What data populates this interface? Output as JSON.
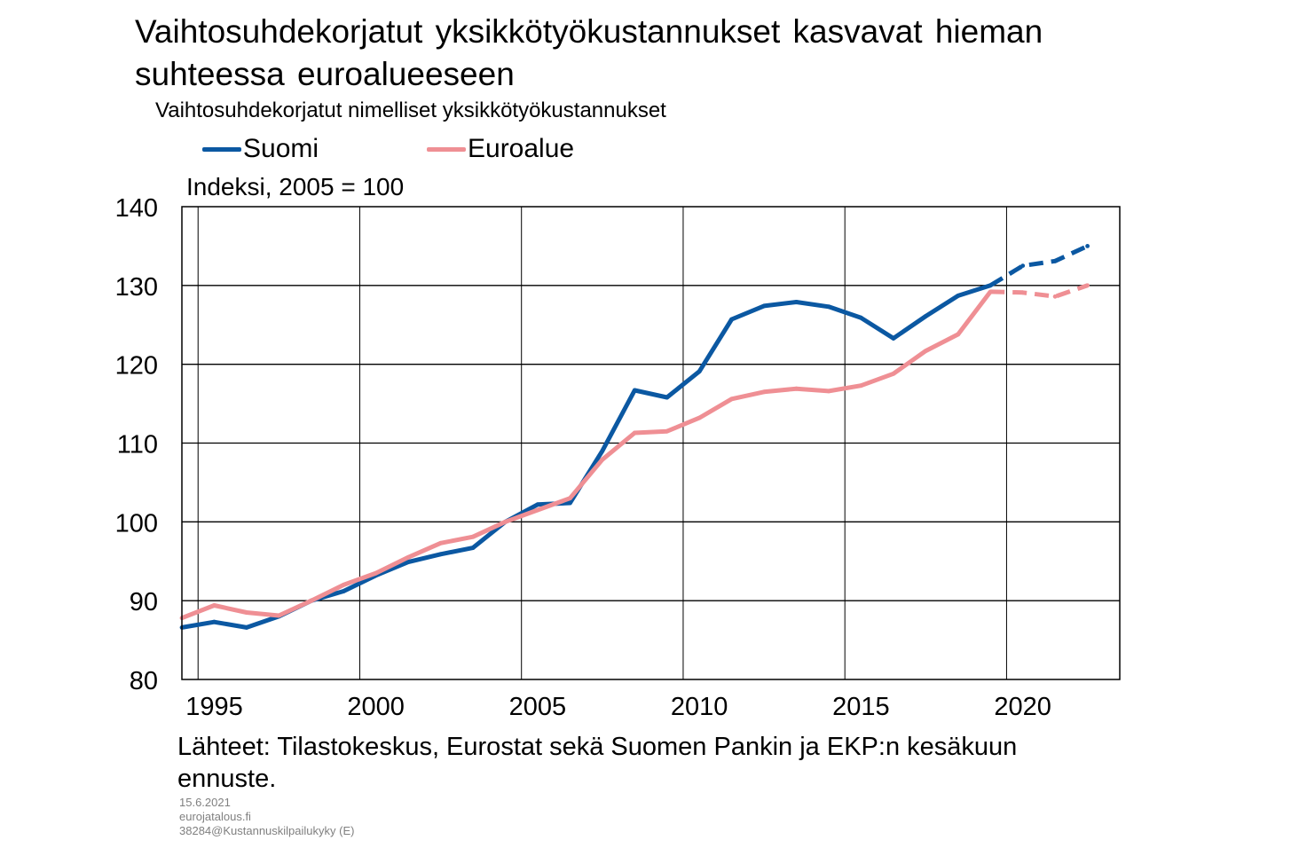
{
  "title": "Vaihtosuhdekorjatut yksikkötyökustannukset kasvavat hieman suhteessa euroalueeseen",
  "subtitle": "Vaihtosuhdekorjatut nimelliset yksikkötyökustannukset",
  "legend": [
    {
      "label": "Suomi",
      "color": "#0b58a2"
    },
    {
      "label": "Euroalue",
      "color": "#ef8f94"
    }
  ],
  "ylabel": "Indeksi, 2005 = 100",
  "source": "Lähteet: Tilastokeskus, Eurostat sekä Suomen Pankin ja EKP:n kesäkuun ennuste.",
  "meta": {
    "date": "15.6.2021",
    "site": "eurojatalous.fi",
    "ref": "38284@Kustannuskilpailukyky (E)"
  },
  "chart_data": {
    "type": "line",
    "title": "Vaihtosuhdekorjatut yksikkötyökustannukset kasvavat hieman suhteessa euroalueeseen",
    "subtitle": "Vaihtosuhdekorjatut nimelliset yksikkötyökustannukset",
    "ylabel": "Indeksi, 2005 = 100",
    "ylim": [
      80,
      140
    ],
    "yticks": [
      80,
      90,
      100,
      110,
      120,
      130,
      140
    ],
    "xlim": [
      1994,
      2023
    ],
    "xticks": [
      "1995",
      "2000",
      "2005",
      "2010",
      "2015",
      "2020"
    ],
    "grid": true,
    "legend_position": "top",
    "forecast_from_year": 2019,
    "x": [
      1994,
      1995,
      1996,
      1997,
      1998,
      1999,
      2000,
      2001,
      2002,
      2003,
      2004,
      2005,
      2006,
      2007,
      2008,
      2009,
      2010,
      2011,
      2012,
      2013,
      2014,
      2015,
      2016,
      2017,
      2018,
      2019,
      2020,
      2021,
      2022
    ],
    "series": [
      {
        "name": "Suomi",
        "color": "#0b58a2",
        "values": [
          86.6,
          87.3,
          86.6,
          88.0,
          90.0,
          91.2,
          93.2,
          94.9,
          95.9,
          96.7,
          100.0,
          102.2,
          102.4,
          109.0,
          116.7,
          115.8,
          119.1,
          125.7,
          127.4,
          127.9,
          127.3,
          125.9,
          123.3,
          126.1,
          128.7,
          130.0,
          132.5,
          133.1,
          135.0
        ]
      },
      {
        "name": "Euroalue",
        "color": "#ef8f94",
        "values": [
          87.8,
          89.4,
          88.5,
          88.1,
          90.0,
          92.0,
          93.5,
          95.5,
          97.3,
          98.1,
          100.0,
          101.5,
          103.0,
          107.9,
          111.3,
          111.5,
          113.2,
          115.6,
          116.5,
          116.9,
          116.6,
          117.3,
          118.8,
          121.7,
          123.8,
          129.2,
          129.1,
          128.6,
          130.0
        ]
      }
    ]
  }
}
